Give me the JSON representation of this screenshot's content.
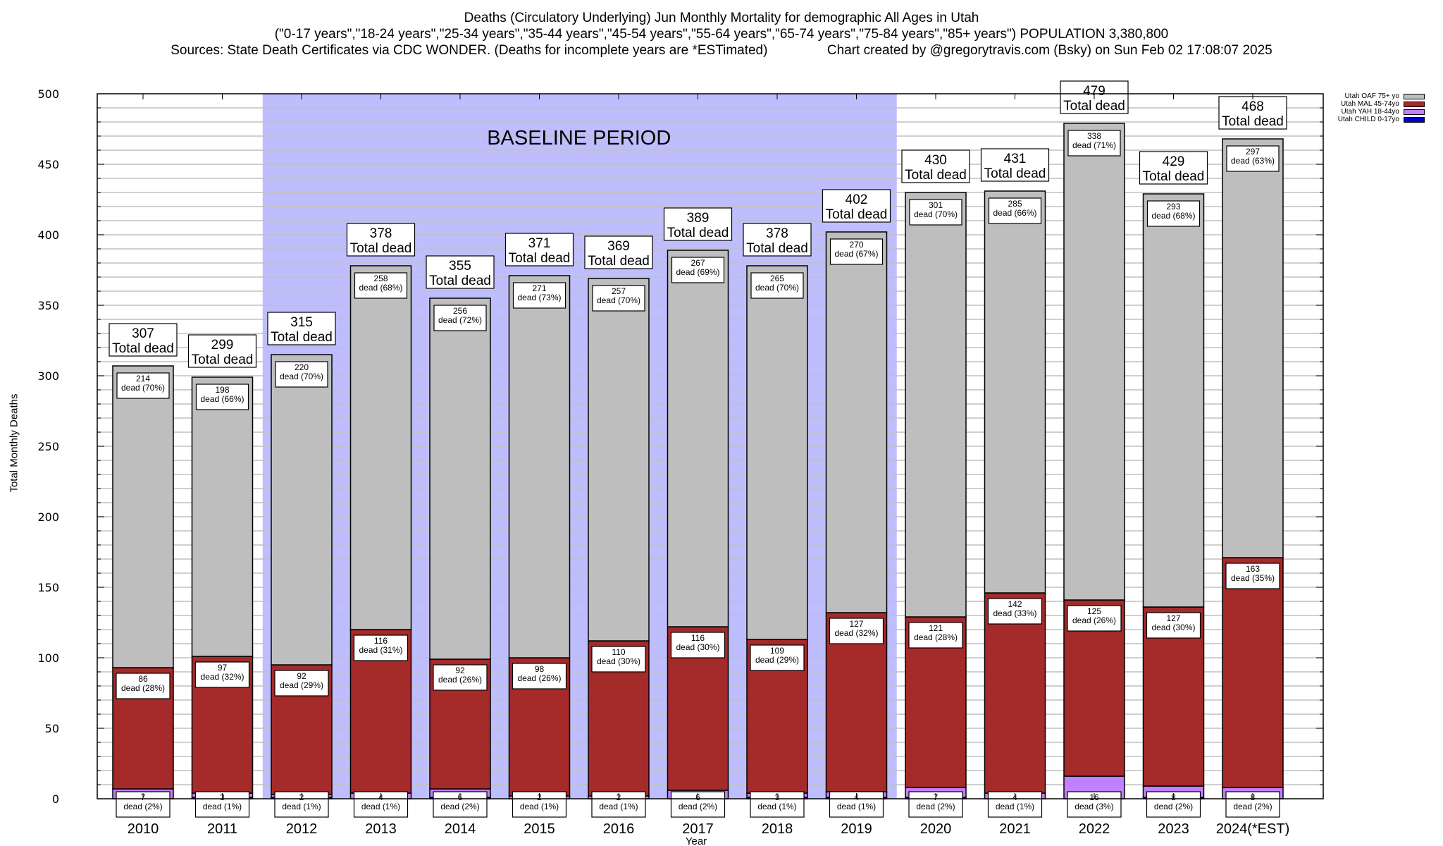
{
  "title": {
    "line1": "Deaths (Circulatory Underlying) Jun Monthly Mortality for demographic All Ages in Utah",
    "line2": "(\"0-17 years\",\"18-24 years\",\"25-34 years\",\"35-44 years\",\"45-54 years\",\"55-64 years\",\"65-74 years\",\"75-84 years\",\"85+ years\") POPULATION 3,380,800",
    "line3": "Sources: State Death Certificates via CDC WONDER. (Deaths for incomplete years are *ESTimated)                Chart created by @gregorytravis.com (Bsky) on Sun Feb 02 17:08:07 2025"
  },
  "colors": {
    "oaf": "#bebebe",
    "mal": "#a52a2a",
    "yah": "#c080ff",
    "child": "#0000cd",
    "baseline": "#bebeff",
    "grid": "#c0c0c0"
  },
  "chart_data": {
    "type": "bar",
    "stacked": true,
    "title": "Deaths (Circulatory Underlying) Jun Monthly Mortality for demographic All Ages in Utah",
    "xlabel": "Year",
    "ylabel": "Total Monthly Deaths",
    "ylim": [
      0,
      500
    ],
    "yticks": [
      0,
      50,
      100,
      150,
      200,
      250,
      300,
      350,
      400,
      450,
      500
    ],
    "grid": true,
    "legend_position": "top-right (outside plot)",
    "annotation": "BASELINE PERIOD",
    "baseline_period": [
      "2012",
      "2019"
    ],
    "total_label_suffix": "Total dead",
    "segment_label_prefix": "dead",
    "categories": [
      "2010",
      "2011",
      "2012",
      "2013",
      "2014",
      "2015",
      "2016",
      "2017",
      "2018",
      "2019",
      "2020",
      "2021",
      "2022",
      "2023",
      "2024(*EST)"
    ],
    "totals": [
      307,
      299,
      315,
      378,
      355,
      371,
      369,
      389,
      378,
      402,
      430,
      431,
      479,
      429,
      468
    ],
    "series": [
      {
        "name": "Utah CHILD 0-17yo",
        "key": "child",
        "values": [
          0,
          1,
          1,
          0,
          1,
          0,
          0,
          0,
          1,
          1,
          1,
          0,
          0,
          1,
          0
        ],
        "pct": []
      },
      {
        "name": "Utah YAH 18-44yo",
        "key": "yah",
        "values": [
          7,
          3,
          2,
          4,
          6,
          2,
          2,
          6,
          3,
          4,
          7,
          4,
          16,
          8,
          8
        ],
        "pct": [
          "2%",
          "1%",
          "1%",
          "1%",
          "2%",
          "1%",
          "1%",
          "2%",
          "1%",
          "1%",
          "2%",
          "1%",
          "3%",
          "2%",
          "2%"
        ]
      },
      {
        "name": "Utah MAL 45-74yo",
        "key": "mal",
        "values": [
          86,
          97,
          92,
          116,
          92,
          98,
          110,
          116,
          109,
          127,
          121,
          142,
          125,
          127,
          163
        ],
        "pct": [
          "28%",
          "32%",
          "29%",
          "31%",
          "26%",
          "26%",
          "30%",
          "30%",
          "29%",
          "32%",
          "28%",
          "33%",
          "26%",
          "30%",
          "35%"
        ]
      },
      {
        "name": "Utah OAF 75+ yo",
        "key": "oaf",
        "values": [
          214,
          198,
          220,
          258,
          256,
          271,
          257,
          267,
          265,
          270,
          301,
          285,
          338,
          293,
          297
        ],
        "pct": [
          "70%",
          "66%",
          "70%",
          "68%",
          "72%",
          "73%",
          "70%",
          "69%",
          "70%",
          "67%",
          "70%",
          "66%",
          "71%",
          "68%",
          "63%"
        ]
      }
    ],
    "legend": [
      "Utah OAF 75+ yo",
      "Utah MAL 45-74yo",
      "Utah YAH 18-44yo",
      "Utah CHILD 0-17yo"
    ]
  }
}
